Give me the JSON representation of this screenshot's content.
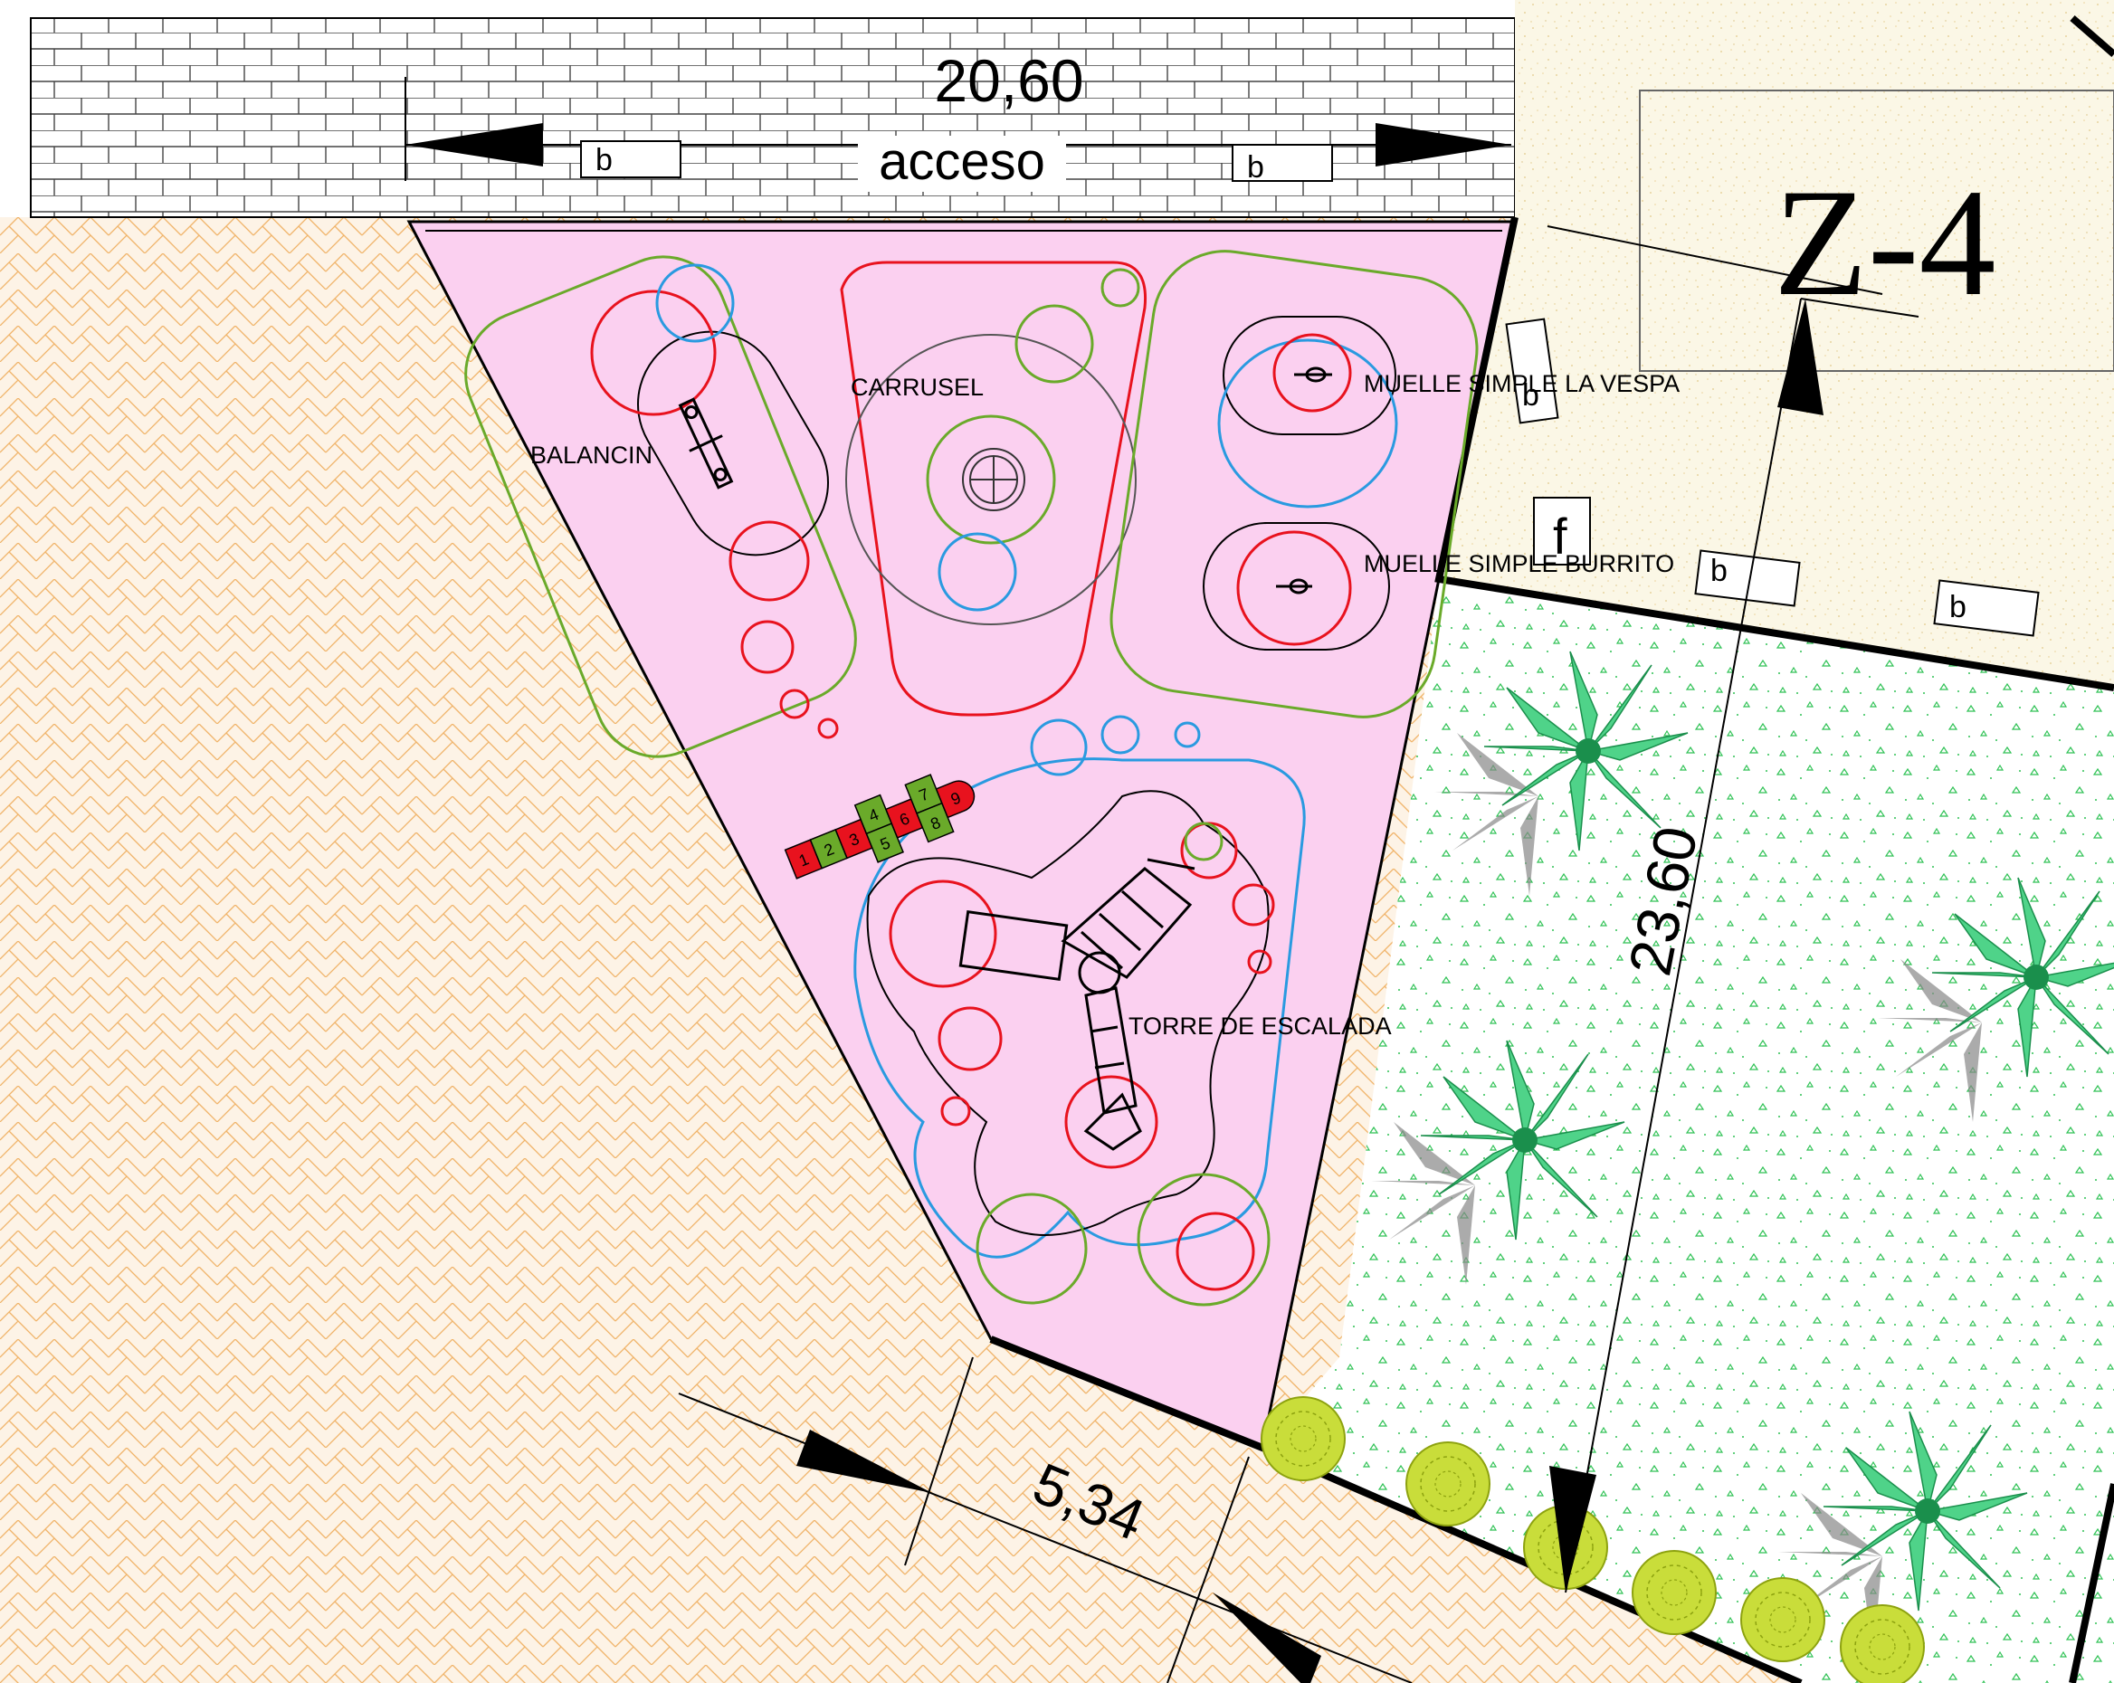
{
  "dimensions": {
    "top_width": "20,60",
    "bottom_width": "5,34",
    "side_length": "23,60"
  },
  "labels": {
    "access": "acceso",
    "zone": "Z-4",
    "letter_b": "b",
    "letter_f": "f"
  },
  "equipment": {
    "carrusel": "CARRUSEL",
    "balancin": "BALANCIN",
    "muelle_vespa": "MUELLE SIMPLE LA VESPA",
    "muelle_burrito": "MUELLE SIMPLE BURRITO",
    "torre": "TORRE DE ESCALADA"
  },
  "hopscotch": [
    "1",
    "2",
    "3",
    "4",
    "5",
    "6",
    "7",
    "8",
    "9"
  ],
  "colors": {
    "play_area": "#fbd0f0",
    "paving_lines": "#f0b46a",
    "sand": "#fbf7e6",
    "lawn_dots": "#2fc255",
    "palm": "#5ce08e",
    "shrub": "#c9dd3a",
    "safety_red": "#e8121e",
    "safety_green": "#6aaa2a",
    "safety_blue": "#2a9ae0"
  }
}
